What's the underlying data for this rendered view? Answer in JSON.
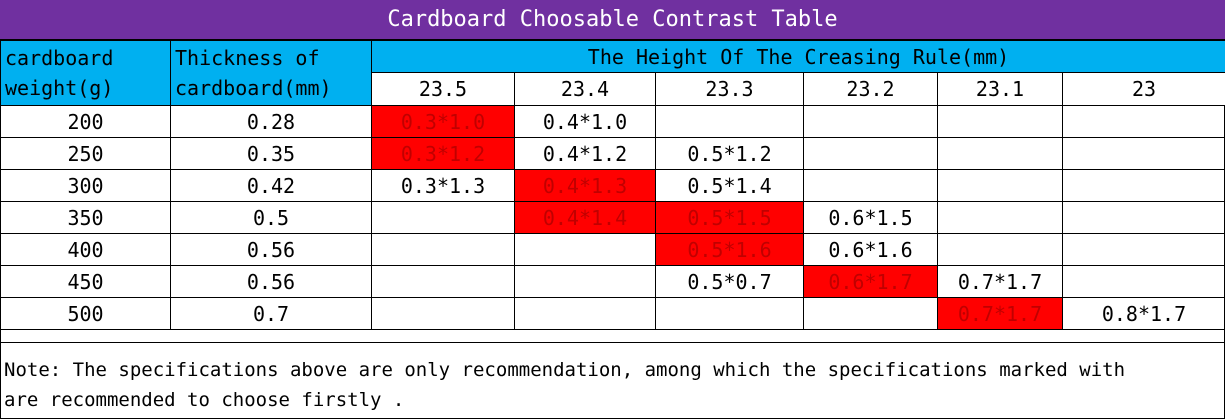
{
  "title": "Cardboard Choosable Contrast Table",
  "colors": {
    "title_bg": "#7030A0",
    "header_bg": "#00B0F0",
    "highlight": "#FF0000"
  },
  "headers": {
    "weight_line1": "cardboard",
    "weight_line2": "weight(g)",
    "thickness_line1": "Thickness of",
    "thickness_line2": "cardboard(mm)",
    "group": "The Height Of The Creasing Rule(mm)",
    "heights": [
      "23.5",
      "23.4",
      "23.3",
      "23.2",
      "23.1",
      "23"
    ]
  },
  "rows": [
    {
      "weight": "200",
      "thickness": "0.28",
      "cells": [
        "0.3*1.0",
        "0.4*1.0",
        "",
        "",
        "",
        ""
      ],
      "highlight": [
        0
      ]
    },
    {
      "weight": "250",
      "thickness": "0.35",
      "cells": [
        "0.3*1.2",
        "0.4*1.2",
        "0.5*1.2",
        "",
        "",
        ""
      ],
      "highlight": [
        0
      ]
    },
    {
      "weight": "300",
      "thickness": "0.42",
      "cells": [
        "0.3*1.3",
        "0.4*1.3",
        "0.5*1.4",
        "",
        "",
        ""
      ],
      "highlight": [
        1
      ]
    },
    {
      "weight": "350",
      "thickness": "0.5",
      "cells": [
        "",
        "0.4*1.4",
        "0.5*1.5",
        "0.6*1.5",
        "",
        ""
      ],
      "highlight": [
        1,
        2
      ]
    },
    {
      "weight": "400",
      "thickness": "0.56",
      "cells": [
        "",
        "",
        "0.5*1.6",
        "0.6*1.6",
        "",
        ""
      ],
      "highlight": [
        2
      ]
    },
    {
      "weight": "450",
      "thickness": "0.56",
      "cells": [
        "",
        "",
        "0.5*0.7",
        "0.6*1.7",
        "0.7*1.7",
        ""
      ],
      "highlight": [
        3
      ]
    },
    {
      "weight": "500",
      "thickness": "0.7",
      "cells": [
        "",
        "",
        "",
        "",
        "0.7*1.7",
        "0.8*1.7"
      ],
      "highlight": [
        4
      ]
    }
  ],
  "note_line1": "Note: The specifications above are only recommendation, among which the specifications marked with",
  "note_line2": "are recommended to choose firstly ."
}
